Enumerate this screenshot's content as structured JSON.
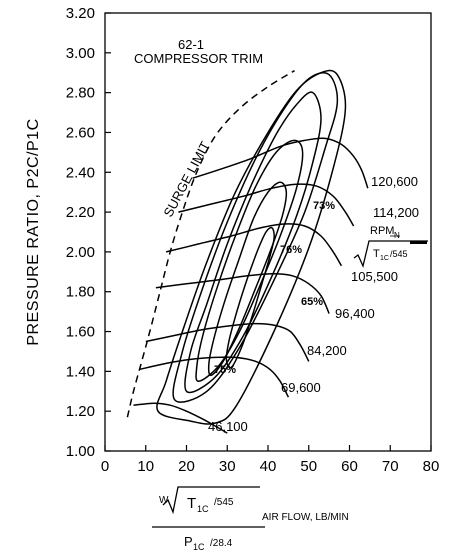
{
  "chart_data": {
    "type": "line",
    "title": "62-1",
    "subtitle": "COMPRESSOR TRIM",
    "ylabel": "PRESSURE RATIO, P2C/P1C",
    "xlabel": {
      "w": "W",
      "t_term": "T",
      "t_sub": "1C",
      "t_den": "/545",
      "p_term": "P",
      "p_sub": "1C",
      "p_den": "/28.4",
      "suffix": "AIR FLOW, LB/MIN"
    },
    "xlim": [
      0,
      80
    ],
    "ylim": [
      1.0,
      3.2
    ],
    "x_ticks": [
      0,
      10,
      20,
      30,
      40,
      50,
      60,
      70,
      80
    ],
    "y_ticks": [
      1.0,
      1.2,
      1.4,
      1.6,
      1.8,
      2.0,
      2.2,
      2.4,
      2.6,
      2.8,
      3.0,
      3.2
    ],
    "x_tick_labels": [
      "0",
      "10",
      "20",
      "30",
      "40",
      "50",
      "60",
      "70",
      "80"
    ],
    "y_tick_labels": [
      "1.00",
      "1.20",
      "1.40",
      "1.60",
      "1.80",
      "2.00",
      "2.20",
      "2.40",
      "2.60",
      "2.80",
      "3.00",
      "3.20"
    ],
    "grid": false,
    "surge_limit": {
      "label": "SURGE LIMIT",
      "style": "dashed",
      "points": [
        [
          5.5,
          1.17
        ],
        [
          7,
          1.3
        ],
        [
          9,
          1.45
        ],
        [
          11,
          1.6
        ],
        [
          13.5,
          1.8
        ],
        [
          16,
          2.0
        ],
        [
          19,
          2.2
        ],
        [
          22.5,
          2.4
        ],
        [
          27,
          2.58
        ],
        [
          33,
          2.72
        ],
        [
          40,
          2.83
        ],
        [
          46.5,
          2.91
        ]
      ]
    },
    "speed_label": {
      "text": "RPM",
      "sub": "N",
      "t_term": "T",
      "t_sub": "1C",
      "t_den": "/545"
    },
    "speed_lines": [
      {
        "label": "46,100",
        "points": [
          [
            7,
            1.23
          ],
          [
            12,
            1.24
          ],
          [
            16,
            1.23
          ],
          [
            20,
            1.2
          ],
          [
            24,
            1.16
          ],
          [
            27.5,
            1.12
          ],
          [
            30,
            1.09
          ]
        ]
      },
      {
        "label": "69,600",
        "points": [
          [
            8.5,
            1.41
          ],
          [
            15,
            1.44
          ],
          [
            21,
            1.46
          ],
          [
            27,
            1.47
          ],
          [
            32,
            1.47
          ],
          [
            37,
            1.45
          ],
          [
            40.5,
            1.41
          ],
          [
            43,
            1.35
          ],
          [
            45,
            1.27
          ]
        ]
      },
      {
        "label": "84,200",
        "points": [
          [
            10,
            1.55
          ],
          [
            17,
            1.58
          ],
          [
            24,
            1.61
          ],
          [
            31,
            1.63
          ],
          [
            37,
            1.64
          ],
          [
            42,
            1.63
          ],
          [
            45.5,
            1.6
          ],
          [
            48,
            1.53
          ],
          [
            50,
            1.45
          ]
        ]
      },
      {
        "label": "96,400",
        "points": [
          [
            12.5,
            1.82
          ],
          [
            20,
            1.84
          ],
          [
            28,
            1.86
          ],
          [
            35,
            1.88
          ],
          [
            41,
            1.89
          ],
          [
            46,
            1.88
          ],
          [
            50,
            1.84
          ],
          [
            53,
            1.78
          ],
          [
            55,
            1.69
          ]
        ]
      },
      {
        "label": "105,500",
        "points": [
          [
            15,
            2.0
          ],
          [
            23,
            2.04
          ],
          [
            31,
            2.08
          ],
          [
            38,
            2.12
          ],
          [
            44,
            2.14
          ],
          [
            49,
            2.13
          ],
          [
            53,
            2.08
          ],
          [
            56,
            2.0
          ],
          [
            58,
            1.93
          ]
        ]
      },
      {
        "label": "114,200",
        "points": [
          [
            18,
            2.2
          ],
          [
            26,
            2.24
          ],
          [
            34,
            2.28
          ],
          [
            41,
            2.32
          ],
          [
            47,
            2.34
          ],
          [
            52,
            2.33
          ],
          [
            56,
            2.28
          ],
          [
            59,
            2.2
          ],
          [
            61,
            2.13
          ]
        ]
      },
      {
        "label": "120,600",
        "points": [
          [
            21.5,
            2.37
          ],
          [
            29,
            2.42
          ],
          [
            36,
            2.47
          ],
          [
            43,
            2.53
          ],
          [
            49,
            2.56
          ],
          [
            54,
            2.57
          ],
          [
            58,
            2.54
          ],
          [
            61,
            2.48
          ],
          [
            63,
            2.41
          ],
          [
            64.5,
            2.32
          ]
        ]
      }
    ],
    "efficiency_islands": [
      {
        "label": "76%",
        "points": [
          [
            31,
            1.42
          ],
          [
            33.5,
            1.52
          ],
          [
            36,
            1.67
          ],
          [
            38.5,
            1.84
          ],
          [
            40.5,
            1.98
          ],
          [
            41.5,
            2.07
          ],
          [
            41,
            2.12
          ],
          [
            39.5,
            2.1
          ],
          [
            37.5,
            2.01
          ],
          [
            35,
            1.87
          ],
          [
            32.5,
            1.71
          ],
          [
            30.5,
            1.56
          ],
          [
            29.8,
            1.46
          ],
          [
            31,
            1.42
          ]
        ]
      },
      {
        "label": "75%",
        "points": [
          [
            26,
            1.38
          ],
          [
            29,
            1.45
          ],
          [
            33,
            1.62
          ],
          [
            37,
            1.82
          ],
          [
            40.5,
            2.0
          ],
          [
            43.5,
            2.18
          ],
          [
            44.5,
            2.3
          ],
          [
            43,
            2.35
          ],
          [
            40,
            2.3
          ],
          [
            36.5,
            2.17
          ],
          [
            33,
            1.97
          ],
          [
            29.5,
            1.76
          ],
          [
            26.8,
            1.57
          ],
          [
            25.5,
            1.44
          ],
          [
            26,
            1.38
          ]
        ]
      },
      {
        "label": "73%",
        "points": [
          [
            23,
            1.35
          ],
          [
            28,
            1.43
          ],
          [
            33,
            1.6
          ],
          [
            38,
            1.83
          ],
          [
            43,
            2.08
          ],
          [
            47,
            2.32
          ],
          [
            48.5,
            2.5
          ],
          [
            46.5,
            2.56
          ],
          [
            42,
            2.5
          ],
          [
            37,
            2.33
          ],
          [
            32,
            2.08
          ],
          [
            27.5,
            1.82
          ],
          [
            24,
            1.58
          ],
          [
            22.5,
            1.42
          ],
          [
            23,
            1.35
          ]
        ]
      },
      {
        "label": "65%",
        "points": [
          [
            20,
            1.3
          ],
          [
            27,
            1.37
          ],
          [
            34,
            1.58
          ],
          [
            41,
            1.88
          ],
          [
            47,
            2.18
          ],
          [
            51,
            2.45
          ],
          [
            53,
            2.67
          ],
          [
            51,
            2.8
          ],
          [
            47,
            2.74
          ],
          [
            42,
            2.59
          ],
          [
            36,
            2.34
          ],
          [
            30,
            2.04
          ],
          [
            25,
            1.74
          ],
          [
            21,
            1.5
          ],
          [
            20,
            1.3
          ]
        ]
      },
      {
        "label": "",
        "points": [
          [
            17,
            1.26
          ],
          [
            25,
            1.3
          ],
          [
            33,
            1.52
          ],
          [
            42,
            1.88
          ],
          [
            49,
            2.2
          ],
          [
            54,
            2.52
          ],
          [
            57,
            2.75
          ],
          [
            55,
            2.89
          ],
          [
            50,
            2.87
          ],
          [
            44,
            2.72
          ],
          [
            37,
            2.47
          ],
          [
            30,
            2.15
          ],
          [
            24,
            1.82
          ],
          [
            19,
            1.5
          ],
          [
            17,
            1.26
          ]
        ]
      },
      {
        "label": "",
        "points": [
          [
            13,
            1.2
          ],
          [
            21,
            1.15
          ],
          [
            27,
            1.14
          ],
          [
            32,
            1.22
          ],
          [
            41,
            1.58
          ],
          [
            50,
            2.02
          ],
          [
            56,
            2.42
          ],
          [
            59,
            2.72
          ],
          [
            57,
            2.89
          ],
          [
            53,
            2.9
          ],
          [
            47,
            2.81
          ],
          [
            40,
            2.6
          ],
          [
            32,
            2.3
          ],
          [
            25,
            1.95
          ],
          [
            19,
            1.6
          ],
          [
            15,
            1.35
          ],
          [
            13,
            1.2
          ]
        ]
      }
    ]
  }
}
